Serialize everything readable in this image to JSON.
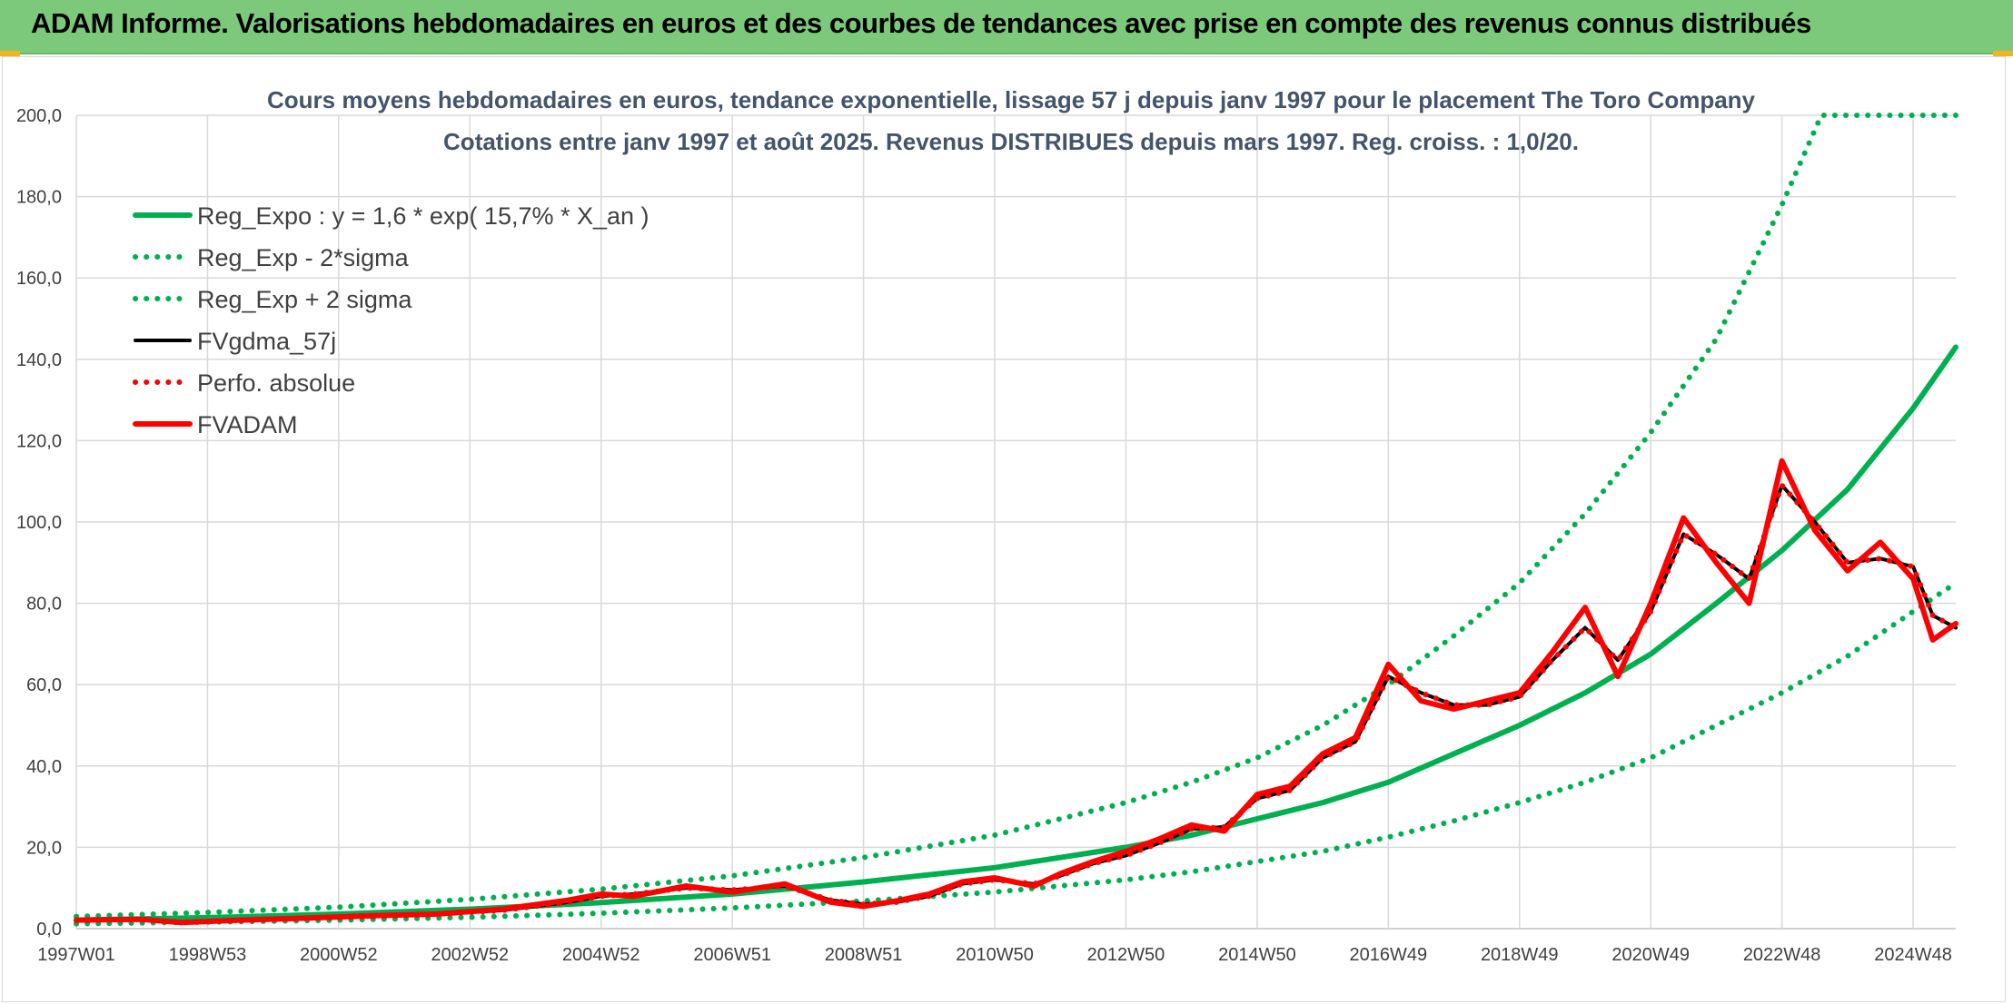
{
  "banner": {
    "title": "ADAM Informe. Valorisations hebdomadaires en euros et des courbes de tendances avec prise en compte des revenus connus distribués",
    "background": "#7dc97b"
  },
  "chart_data": {
    "type": "line",
    "title": "Cours moyens hebdomadaires en euros, tendance exponentielle, lissage 57 j depuis janv 1997 pour le placement The Toro Company",
    "subtitle": "Cotations entre janv 1997 et août 2025. Revenus DISTRIBUES depuis mars 1997. Reg. croiss. : 1,0/20.",
    "xlabel": "",
    "ylabel": "",
    "ylim": [
      0,
      200
    ],
    "xlim": [
      1997.0,
      2025.65
    ],
    "y_ticks": [
      "0,0",
      "20,0",
      "40,0",
      "60,0",
      "80,0",
      "100,0",
      "120,0",
      "140,0",
      "160,0",
      "180,0",
      "200,0"
    ],
    "x_ticks": [
      {
        "label": "1997W01",
        "x": 1997.0
      },
      {
        "label": "1998W53",
        "x": 1999.0
      },
      {
        "label": "2000W52",
        "x": 2001.0
      },
      {
        "label": "2002W52",
        "x": 2003.0
      },
      {
        "label": "2004W52",
        "x": 2005.0
      },
      {
        "label": "2006W51",
        "x": 2007.0
      },
      {
        "label": "2008W51",
        "x": 2009.0
      },
      {
        "label": "2010W50",
        "x": 2011.0
      },
      {
        "label": "2012W50",
        "x": 2013.0
      },
      {
        "label": "2014W50",
        "x": 2015.0
      },
      {
        "label": "2016W49",
        "x": 2017.0
      },
      {
        "label": "2018W49",
        "x": 2019.0
      },
      {
        "label": "2020W49",
        "x": 2021.0
      },
      {
        "label": "2022W48",
        "x": 2023.0
      },
      {
        "label": "2024W48",
        "x": 2025.0
      }
    ],
    "grid": true,
    "legend_position": "top-left",
    "series": [
      {
        "name": "Reg_Expo : y = 1,6 * exp( 15,7% *  X_an )",
        "color": "#00b050",
        "style": "solid",
        "x": [
          1997.0,
          1999.0,
          2001.0,
          2003.0,
          2005.0,
          2007.0,
          2009.0,
          2011.0,
          2013.0,
          2014.0,
          2015.0,
          2016.0,
          2017.0,
          2018.0,
          2019.0,
          2020.0,
          2021.0,
          2022.0,
          2023.0,
          2024.0,
          2025.0,
          2025.65
        ],
        "y": [
          2.1,
          2.7,
          3.6,
          4.8,
          6.4,
          8.5,
          11.5,
          15.0,
          20.0,
          23.0,
          27.0,
          31.0,
          36.0,
          43.0,
          50.0,
          58.0,
          67.5,
          80.0,
          93.0,
          108.0,
          128.0,
          143.0
        ]
      },
      {
        "name": "Reg_Exp - 2*sigma",
        "color": "#00b050",
        "style": "dotted",
        "x": [
          1997.0,
          1999.0,
          2001.0,
          2003.0,
          2005.0,
          2007.0,
          2009.0,
          2011.0,
          2013.0,
          2014.0,
          2015.0,
          2016.0,
          2017.0,
          2018.0,
          2019.0,
          2020.0,
          2021.0,
          2022.0,
          2023.0,
          2024.0,
          2025.0,
          2025.65
        ],
        "y": [
          1.2,
          1.6,
          2.1,
          2.8,
          3.8,
          5.1,
          6.8,
          9.0,
          12.0,
          14.0,
          16.5,
          19.0,
          22.5,
          26.5,
          31.0,
          36.0,
          42.0,
          50.0,
          58.0,
          67.0,
          78.0,
          85.0
        ]
      },
      {
        "name": "Reg_Exp + 2 sigma",
        "color": "#00b050",
        "style": "dotted",
        "x": [
          1997.0,
          1999.0,
          2001.0,
          2003.0,
          2005.0,
          2007.0,
          2009.0,
          2011.0,
          2013.0,
          2014.0,
          2015.0,
          2016.0,
          2017.0,
          2018.0,
          2019.0,
          2020.0,
          2021.0,
          2022.0,
          2023.0,
          2023.6,
          2024.0,
          2025.0,
          2025.65
        ],
        "y": [
          3.0,
          4.0,
          5.3,
          7.2,
          9.7,
          13.0,
          17.5,
          23.0,
          31.0,
          36.0,
          42.0,
          50.0,
          60.0,
          72.0,
          85.0,
          102.0,
          122.0,
          145.0,
          178.0,
          200.0,
          200.0,
          200.0,
          200.0
        ]
      },
      {
        "name": "FVgdma_57j",
        "color": "#000000",
        "style": "solid",
        "x": [
          1997.0,
          1998.0,
          1998.6,
          1999.5,
          2000.5,
          2001.5,
          2002.5,
          2003.5,
          2004.5,
          2005.0,
          2005.5,
          2006.3,
          2007.0,
          2007.8,
          2008.5,
          2009.0,
          2009.5,
          2010.0,
          2010.5,
          2011.0,
          2011.6,
          2012.0,
          2012.5,
          2013.0,
          2013.5,
          2014.0,
          2014.5,
          2015.0,
          2015.5,
          2016.0,
          2016.5,
          2017.0,
          2017.5,
          2018.0,
          2018.5,
          2019.0,
          2019.5,
          2020.0,
          2020.5,
          2021.0,
          2021.5,
          2022.0,
          2022.5,
          2023.0,
          2023.5,
          2024.0,
          2024.5,
          2025.0,
          2025.3,
          2025.65
        ],
        "y": [
          2.0,
          2.2,
          1.6,
          2.0,
          2.5,
          3.0,
          3.5,
          4.5,
          6.5,
          8.0,
          8.5,
          10.0,
          9.5,
          10.5,
          7.0,
          6.0,
          6.5,
          8.0,
          11.0,
          12.0,
          11.0,
          13.0,
          16.0,
          18.0,
          21.0,
          24.5,
          25.0,
          32.0,
          34.0,
          42.0,
          46.0,
          62.0,
          58.0,
          55.0,
          55.0,
          57.0,
          66.0,
          74.0,
          66.0,
          78.0,
          97.0,
          92.0,
          86.0,
          109.0,
          100.0,
          90.0,
          91.0,
          89.0,
          77.0,
          74.0
        ]
      },
      {
        "name": "Perfo. absolue",
        "color": "#ff0000",
        "style": "dotted",
        "x": [
          1997.0,
          1998.0,
          1998.6,
          1999.5,
          2000.5,
          2001.5,
          2002.5,
          2003.5,
          2004.5,
          2005.0,
          2005.5,
          2006.3,
          2007.0,
          2007.8,
          2008.5,
          2009.0,
          2009.5,
          2010.0,
          2010.5,
          2011.0,
          2011.6,
          2012.0,
          2012.5,
          2013.0,
          2013.5,
          2014.0,
          2014.5,
          2015.0,
          2015.5,
          2016.0,
          2016.5,
          2017.0,
          2017.5,
          2018.0,
          2018.5,
          2019.0,
          2019.5,
          2020.0,
          2020.5,
          2021.0,
          2021.5,
          2022.0,
          2022.5,
          2023.0,
          2023.5,
          2024.0,
          2024.5,
          2025.0,
          2025.3,
          2025.65
        ],
        "y": [
          2.0,
          2.2,
          1.6,
          2.0,
          2.5,
          3.0,
          3.5,
          4.5,
          6.5,
          8.0,
          8.5,
          10.0,
          9.5,
          10.5,
          7.0,
          6.0,
          6.5,
          8.0,
          11.0,
          12.0,
          11.0,
          13.0,
          16.0,
          18.0,
          21.0,
          24.5,
          25.0,
          32.0,
          34.0,
          42.0,
          46.0,
          62.0,
          58.0,
          55.0,
          55.0,
          57.0,
          66.0,
          74.0,
          66.0,
          78.0,
          97.0,
          92.0,
          86.0,
          109.0,
          100.0,
          90.0,
          91.0,
          89.0,
          77.0,
          74.0
        ]
      },
      {
        "name": "FVADAM",
        "color": "#ff0000",
        "style": "solid",
        "x": [
          1997.0,
          1998.0,
          1998.6,
          1999.5,
          2000.5,
          2001.5,
          2002.5,
          2003.5,
          2004.5,
          2005.0,
          2005.5,
          2006.3,
          2007.0,
          2007.8,
          2008.5,
          2009.0,
          2009.5,
          2010.0,
          2010.5,
          2011.0,
          2011.6,
          2012.0,
          2012.5,
          2013.0,
          2013.5,
          2014.0,
          2014.5,
          2015.0,
          2015.5,
          2016.0,
          2016.5,
          2017.0,
          2017.5,
          2018.0,
          2018.5,
          2019.0,
          2019.5,
          2020.0,
          2020.5,
          2021.0,
          2021.5,
          2022.0,
          2022.5,
          2023.0,
          2023.5,
          2024.0,
          2024.5,
          2025.0,
          2025.3,
          2025.65
        ],
        "y": [
          2.1,
          2.3,
          1.5,
          2.1,
          2.6,
          3.2,
          3.6,
          4.8,
          7.0,
          8.5,
          8.0,
          10.5,
          9.0,
          11.0,
          6.5,
          5.5,
          6.8,
          8.5,
          11.5,
          12.5,
          10.5,
          13.5,
          16.5,
          19.0,
          22.0,
          25.5,
          24.0,
          33.0,
          35.0,
          43.0,
          47.0,
          65.0,
          56.0,
          54.0,
          56.0,
          58.0,
          68.0,
          79.0,
          62.0,
          80.0,
          101.0,
          90.0,
          80.0,
          115.0,
          98.0,
          88.0,
          95.0,
          86.0,
          71.0,
          75.0
        ]
      }
    ]
  }
}
